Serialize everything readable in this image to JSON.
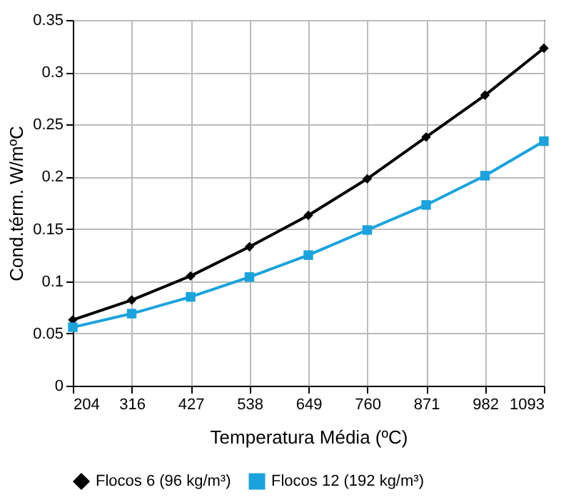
{
  "chart_data": {
    "type": "line",
    "xlabel": "Temperatura Média (ºC)",
    "ylabel": "Cond.térm. W/mºC",
    "categories": [
      "204",
      "316",
      "427",
      "538",
      "649",
      "760",
      "871",
      "982",
      "1093"
    ],
    "series": [
      {
        "name": "Flocos 6 (96 kg/m³)",
        "color": "#000000",
        "marker": "diamond",
        "values": [
          0.063,
          0.082,
          0.105,
          0.133,
          0.163,
          0.198,
          0.238,
          0.278,
          0.323
        ]
      },
      {
        "name": "Flocos 12 (192 kg/m³)",
        "color": "#1aa3dc",
        "marker": "square",
        "values": [
          0.056,
          0.069,
          0.085,
          0.104,
          0.125,
          0.149,
          0.173,
          0.201,
          0.234
        ]
      }
    ],
    "ylim": [
      0,
      0.35
    ],
    "yticks": [
      0,
      0.05,
      0.1,
      0.15,
      0.2,
      0.25,
      0.3,
      0.35
    ],
    "grid": true,
    "legend": "bottom",
    "line_style": "solid"
  }
}
